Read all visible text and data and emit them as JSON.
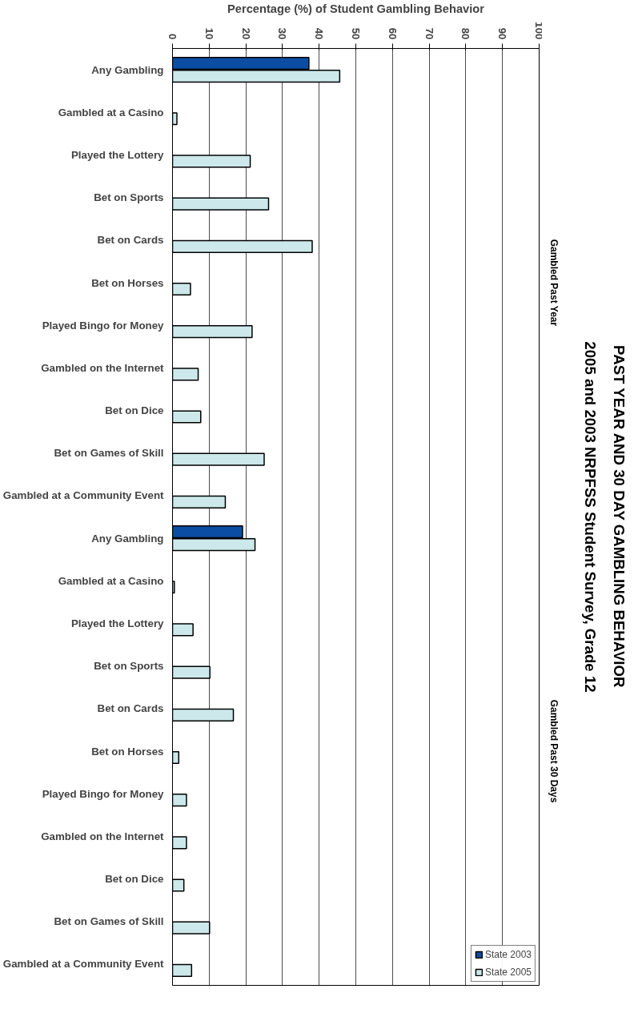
{
  "chart_data": {
    "type": "bar",
    "orientation": "horizontal",
    "title": "PAST YEAR AND 30 DAY GAMBLING BEHAVIOR",
    "subtitle": "2005 and 2003 NRPFSS Student Survey, Grade 12",
    "xlabel": "Percentage (%) of Student Gambling Behavior",
    "categories": [
      "Any Gambling",
      "Gambled at a Casino",
      "Played the Lottery",
      "Bet on Sports",
      "Bet on Cards",
      "Bet on Horses",
      "Played Bingo for Money",
      "Gambled on the Internet",
      "Bet on Dice",
      "Bet on Games of Skill",
      "Gambled at a Community Event",
      "Any Gambling",
      "Gambled at a Casino",
      "Played the Lottery",
      "Bet on Sports",
      "Bet on Cards",
      "Bet on Horses",
      "Played Bingo for Money",
      "Gambled on the Internet",
      "Bet on Dice",
      "Bet on Games of Skill",
      "Gambled at a Community Event"
    ],
    "series": [
      {
        "name": "State 2003",
        "color": "#0b4da2",
        "values": [
          37.2,
          null,
          null,
          null,
          null,
          null,
          null,
          null,
          null,
          null,
          null,
          19.1,
          null,
          null,
          null,
          null,
          null,
          null,
          null,
          null,
          null,
          null
        ]
      },
      {
        "name": "State 2005",
        "color": "#cce8ea",
        "values": [
          45.6,
          1.2,
          21.2,
          26.2,
          38.1,
          4.9,
          21.7,
          7.0,
          7.7,
          25.0,
          14.4,
          22.5,
          0.5,
          5.6,
          10.2,
          16.6,
          1.7,
          3.8,
          3.8,
          3.1,
          10.1,
          5.2
        ]
      }
    ],
    "annotations": [
      "Gambled Past Year",
      "Gambled Past 30 Days"
    ],
    "xlim": [
      0,
      100
    ],
    "xticks": [
      0,
      10,
      20,
      30,
      40,
      50,
      60,
      70,
      80,
      90,
      100
    ],
    "grid": "x",
    "legend": "bottom right"
  }
}
